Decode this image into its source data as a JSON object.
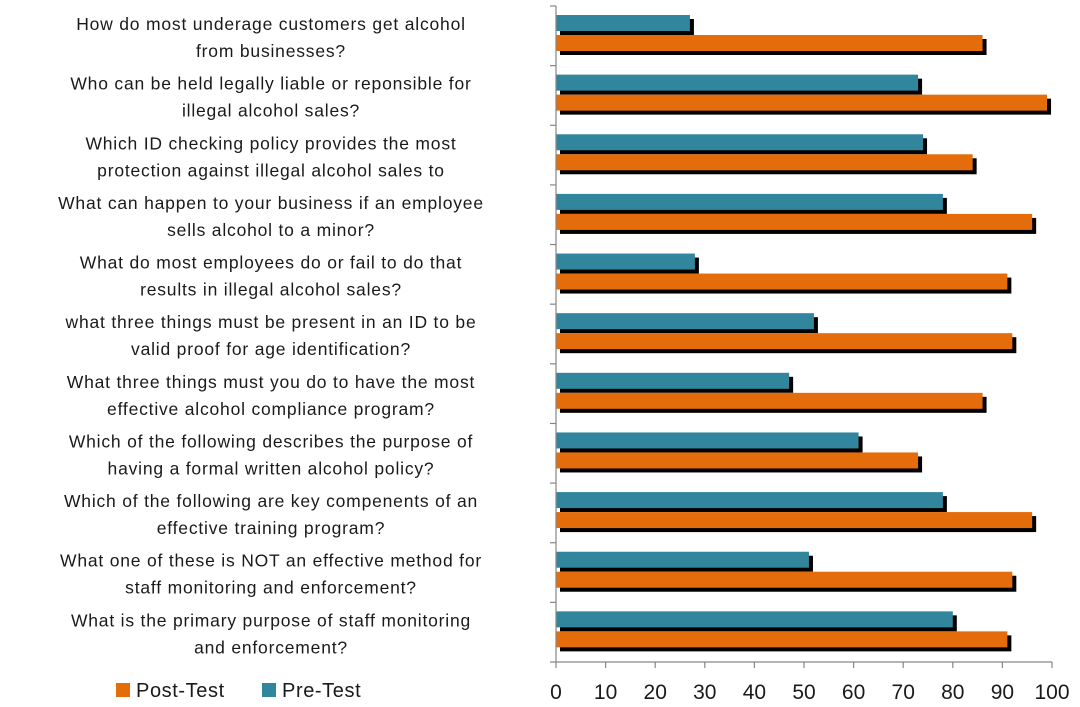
{
  "chart_data": {
    "type": "bar",
    "orientation": "horizontal",
    "categories": [
      [
        "How do most underage customers  get alcohol",
        "from businesses?"
      ],
      [
        "Who can be held legally liable or reponsible for",
        "illegal alcohol sales?"
      ],
      [
        "Which ID checking policy provides the most",
        "protection against illegal alcohol sales to"
      ],
      [
        "What can happen to your business if an employee",
        "sells alcohol to a minor?"
      ],
      [
        "What do most employees do or fail to do that",
        "results in illegal alcohol sales?"
      ],
      [
        "what three things must be present in an ID to be",
        "valid proof for age identification?"
      ],
      [
        "What three things must you do to have the most",
        "effective alcohol compliance program?"
      ],
      [
        "Which of the following describes the purpose of",
        "having a formal written alcohol policy?"
      ],
      [
        "Which of the following are key compenents of an",
        "effective training program?"
      ],
      [
        "What one of these is NOT an effective method for",
        "staff monitoring and enforcement?"
      ],
      [
        "What is the primary purpose of staff monitoring",
        "and enforcement?"
      ]
    ],
    "series": [
      {
        "name": "Pre-Test",
        "color": "#31859c",
        "values": [
          27,
          73,
          74,
          78,
          28,
          52,
          47,
          61,
          78,
          51,
          80
        ]
      },
      {
        "name": "Post-Test",
        "color": "#e46c0a",
        "values": [
          86,
          99,
          84,
          96,
          91,
          92,
          86,
          73,
          96,
          92,
          91
        ]
      }
    ],
    "xlim": [
      0,
      100
    ],
    "xticks": [
      0,
      10,
      20,
      30,
      40,
      50,
      60,
      70,
      80,
      90,
      100
    ],
    "grid": false,
    "legend": {
      "placement": "bottom-left",
      "order": [
        "Post-Test",
        "Pre-Test"
      ]
    },
    "title": "",
    "xlabel": "",
    "ylabel": ""
  }
}
